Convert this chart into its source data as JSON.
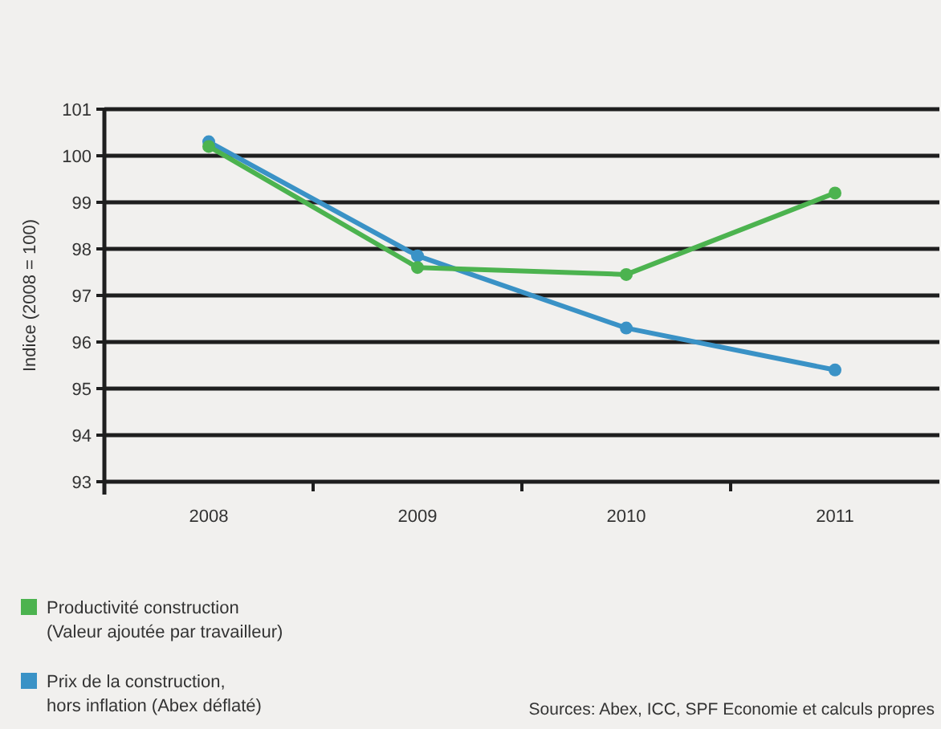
{
  "chart_data": {
    "type": "line",
    "ylabel": "Indice (2008 = 100)",
    "categories": [
      "2008",
      "2009",
      "2010",
      "2011"
    ],
    "series": [
      {
        "name": "Productivité construction\n(Valeur ajoutée par travailleur)",
        "color": "#4cb34f",
        "values": [
          100.2,
          97.6,
          97.45,
          99.2
        ]
      },
      {
        "name": "Prix de la construction,\nhors inflation (Abex déflaté)",
        "color": "#3a92c6",
        "values": [
          100.3,
          97.85,
          96.3,
          95.4
        ]
      }
    ],
    "ylim": [
      93,
      101
    ],
    "yticks": [
      93,
      94,
      95,
      96,
      97,
      98,
      99,
      100,
      101
    ],
    "grid": "y",
    "legend": "bottom left",
    "marker": "circle",
    "line_style": "solid",
    "annotations": [
      "Sources: Abex, ICC, SPF Economie et calculs propres"
    ]
  }
}
